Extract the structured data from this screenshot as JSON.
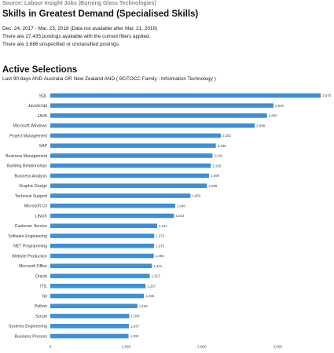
{
  "header": {
    "source": "Source: Labour Insight Jobs (Burning Glass Technologies)",
    "title": "Skills in Greatest Demand (Specialised Skills)",
    "date_range": "Dec.  24, 2017  - Mar.  23, 2018  (Data not available after  Mar.  21, 2018)",
    "postings_line": "There are 27,435 postings available with the current filters applied.",
    "unspecified_line": "There are 3,686 unspecified or unclassified postings."
  },
  "selections": {
    "title": "Active Selections",
    "subtitle": "Last 90 days AND Australia OR New Zealand AND ( BGTOCC Family : Information Technology )"
  },
  "chart_data": {
    "type": "bar",
    "orientation": "horizontal",
    "categories": [
      "SQL",
      "JavaScript",
      "JAVA",
      "Microsoft Windows",
      "Project Management",
      "SAP",
      "Business Management",
      "Building Relationships",
      "Business Analysis",
      "Graphic Design",
      "Technical Support",
      "Microsoft C#",
      "LINUX",
      "Customer Service",
      "Software Engineering",
      "NET Programming",
      "Website Production",
      "Microsoft Office",
      "Oracle",
      "ITIL",
      "Git",
      "Python",
      "Scrum",
      "Systems Engineering",
      "Business Process"
    ],
    "values": [
      3570,
      2946,
      2860,
      2699,
      2252,
      2185,
      2141,
      2119,
      2096,
      2068,
      1850,
      1648,
      1632,
      1411,
      1372,
      1370,
      1366,
      1341,
      1313,
      1257,
      1235,
      1150,
      1043,
      1037,
      1033
    ],
    "value_labels": [
      "3,570",
      "2,946",
      "2,860",
      "2,699",
      "2,252",
      "2,185",
      "2,141",
      "2,119",
      "2,096",
      "2,068",
      "1,850",
      "1,648",
      "1,632",
      "1,411",
      "1,372",
      "1,370",
      "1,366",
      "1,341",
      "1,313",
      "1,257",
      "1,235",
      "1,150",
      "1,043",
      "1,037",
      "1,033"
    ],
    "x_ticks": [
      0,
      1000,
      2000,
      3000
    ],
    "x_tick_labels": [
      "0",
      "1,000",
      "2,000",
      "3,000"
    ],
    "xlim": [
      0,
      3700
    ],
    "grid": false,
    "bar_color": "#3d8fd6"
  }
}
